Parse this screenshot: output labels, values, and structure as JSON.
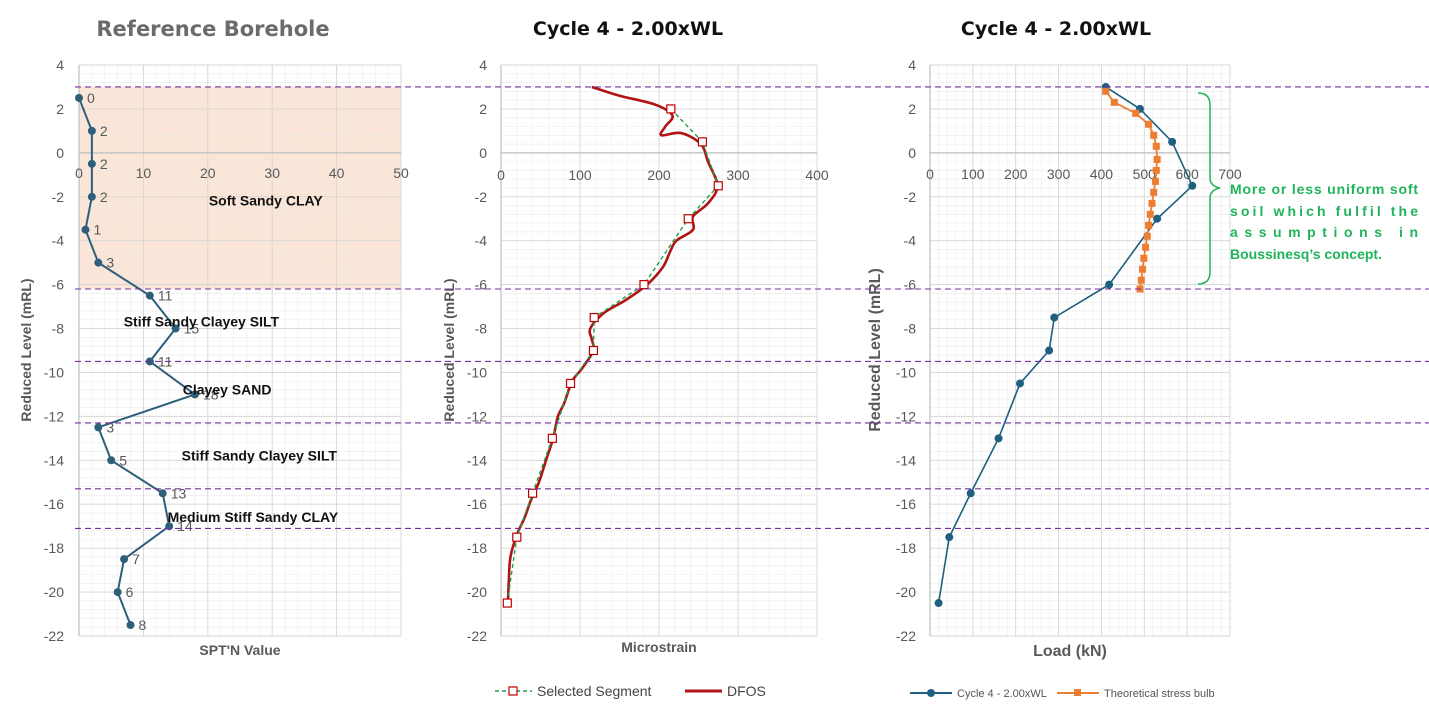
{
  "chart_data": [
    {
      "type": "line",
      "title": "Reference Borehole",
      "xlabel": "SPT'N Value",
      "ylabel": "Reduced Level (mRL)",
      "xlim": [
        0,
        50
      ],
      "ylim": [
        -22,
        4
      ],
      "xticks": [
        "0",
        "10",
        "20",
        "30",
        "40",
        "50"
      ],
      "yticks": [
        "4",
        "2",
        "0",
        "-2",
        "-4",
        "-6",
        "-8",
        "-10",
        "-12",
        "-14",
        "-16",
        "-18",
        "-20",
        "-22"
      ],
      "grid": true,
      "shaded_layer": {
        "top_mrl": 3.0,
        "bottom_mrl": -6.2,
        "color": "#fbe5d6"
      },
      "series": [
        {
          "color": "#2e5f7a",
          "points": [
            {
              "n": 0,
              "mrl": 2.5,
              "label": "0"
            },
            {
              "n": 2,
              "mrl": 1.0,
              "label": "2"
            },
            {
              "n": 2,
              "mrl": -0.5,
              "label": "2"
            },
            {
              "n": 2,
              "mrl": -2.0,
              "label": "2"
            },
            {
              "n": 1,
              "mrl": -3.5,
              "label": "1"
            },
            {
              "n": 3,
              "mrl": -5.0,
              "label": "3"
            },
            {
              "n": 11,
              "mrl": -6.5,
              "label": "11"
            },
            {
              "n": 15,
              "mrl": -8.0,
              "label": "15"
            },
            {
              "n": 11,
              "mrl": -9.5,
              "label": "11"
            },
            {
              "n": 18,
              "mrl": -11.0,
              "label": "18"
            },
            {
              "n": 3,
              "mrl": -12.5,
              "label": "3"
            },
            {
              "n": 5,
              "mrl": -14.0,
              "label": "5"
            },
            {
              "n": 13,
              "mrl": -15.5,
              "label": "13"
            },
            {
              "n": 14,
              "mrl": -17.0,
              "label": "14"
            },
            {
              "n": 7,
              "mrl": -18.5,
              "label": "7"
            },
            {
              "n": 6,
              "mrl": -20.0,
              "label": "6"
            },
            {
              "n": 8,
              "mrl": -21.5,
              "label": "8"
            }
          ]
        }
      ],
      "soil_layers": [
        {
          "label": "Soft Sandy CLAY",
          "n": 29,
          "mrl": -2.4
        },
        {
          "label": "Stiff Sandy Clayey SILT",
          "n": 19,
          "mrl": -7.9
        },
        {
          "label": "Clayey SAND",
          "n": 23,
          "mrl": -11.0
        },
        {
          "label": "Stiff Sandy Clayey SILT",
          "n": 28,
          "mrl": -14.0
        },
        {
          "label": "Medium Stiff Sandy CLAY",
          "n": 27,
          "mrl": -16.8
        }
      ]
    },
    {
      "type": "line",
      "title": "Cycle 4 - 2.00xWL",
      "xlabel": "Microstrain",
      "ylabel": "Reduced Level (mRL)",
      "xlim": [
        0,
        400
      ],
      "ylim": [
        -22,
        4
      ],
      "xticks": [
        "0",
        "100",
        "200",
        "300",
        "400"
      ],
      "yticks": [
        "4",
        "2",
        "0",
        "-2",
        "-4",
        "-6",
        "-8",
        "-10",
        "-12",
        "-14",
        "-16",
        "-18",
        "-20",
        "-22"
      ],
      "grid": true,
      "legend": "bottom",
      "series": [
        {
          "name": "Selected Segment",
          "color": "#1aa34a",
          "marker_color": "#c00000",
          "points": [
            [
              215,
              2.0
            ],
            [
              255,
              0.5
            ],
            [
              275,
              -1.5
            ],
            [
              237,
              -3.0
            ],
            [
              181,
              -6.0
            ],
            [
              118,
              -7.5
            ],
            [
              117,
              -9.0
            ],
            [
              88,
              -10.5
            ],
            [
              65,
              -13.0
            ],
            [
              40,
              -15.5
            ],
            [
              20,
              -17.5
            ],
            [
              8,
              -20.5
            ]
          ]
        },
        {
          "name": "DFOS",
          "color": "#b01414",
          "points": [
            [
              115,
              3.0
            ],
            [
              150,
              2.6
            ],
            [
              195,
              2.2
            ],
            [
              217,
              1.7
            ],
            [
              208,
              1.2
            ],
            [
              203,
              0.8
            ],
            [
              228,
              0.9
            ],
            [
              253,
              0.4
            ],
            [
              262,
              -0.4
            ],
            [
              274,
              -1.5
            ],
            [
              262,
              -2.3
            ],
            [
              243,
              -2.9
            ],
            [
              243,
              -3.5
            ],
            [
              222,
              -4.0
            ],
            [
              214,
              -4.5
            ],
            [
              205,
              -5.2
            ],
            [
              185,
              -6.0
            ],
            [
              158,
              -6.7
            ],
            [
              130,
              -7.3
            ],
            [
              113,
              -8.0
            ],
            [
              115,
              -8.5
            ],
            [
              117,
              -9.0
            ],
            [
              103,
              -9.8
            ],
            [
              90,
              -10.4
            ],
            [
              80,
              -11.4
            ],
            [
              72,
              -12.0
            ],
            [
              66,
              -13.0
            ],
            [
              57,
              -14.0
            ],
            [
              48,
              -15.0
            ],
            [
              38,
              -15.8
            ],
            [
              30,
              -16.6
            ],
            [
              20,
              -17.4
            ],
            [
              12,
              -18.4
            ],
            [
              10,
              -19.4
            ],
            [
              9,
              -20.3
            ]
          ]
        }
      ]
    },
    {
      "type": "line",
      "title": "Cycle 4 - 2.00xWL",
      "xlabel": "Load (kN)",
      "ylabel": "Reduced Level (mRL)",
      "xlim": [
        0,
        700
      ],
      "ylim": [
        -22,
        4
      ],
      "xticks": [
        "0",
        "100",
        "200",
        "300",
        "400",
        "500",
        "600",
        "700"
      ],
      "yticks": [
        "4",
        "2",
        "0",
        "-2",
        "-4",
        "-6",
        "-8",
        "-10",
        "-12",
        "-14",
        "-16",
        "-18",
        "-20",
        "-22"
      ],
      "grid": true,
      "legend": "bottom",
      "series": [
        {
          "name": "Cycle 4 - 2.00xWL",
          "color": "#1f5f7f",
          "points": [
            [
              410,
              3.0
            ],
            [
              490,
              2.0
            ],
            [
              565,
              0.5
            ],
            [
              612,
              -1.5
            ],
            [
              530,
              -3.0
            ],
            [
              418,
              -6.0
            ],
            [
              290,
              -7.5
            ],
            [
              278,
              -9.0
            ],
            [
              210,
              -10.5
            ],
            [
              160,
              -13.0
            ],
            [
              95,
              -15.5
            ],
            [
              45,
              -17.5
            ],
            [
              20,
              -20.5
            ]
          ]
        },
        {
          "name": "Theoretical stress bulb",
          "color": "#ed7d31",
          "points": [
            [
              410,
              2.8
            ],
            [
              430,
              2.3
            ],
            [
              480,
              1.8
            ],
            [
              510,
              1.3
            ],
            [
              522,
              0.8
            ],
            [
              528,
              0.3
            ],
            [
              530,
              -0.3
            ],
            [
              528,
              -0.8
            ],
            [
              526,
              -1.3
            ],
            [
              522,
              -1.8
            ],
            [
              518,
              -2.3
            ],
            [
              514,
              -2.8
            ],
            [
              510,
              -3.3
            ],
            [
              507,
              -3.8
            ],
            [
              503,
              -4.3
            ],
            [
              499,
              -4.8
            ],
            [
              496,
              -5.3
            ],
            [
              493,
              -5.8
            ],
            [
              490,
              -6.2
            ]
          ]
        }
      ],
      "annotation": {
        "lines": [
          "More or less uniform soft",
          "soil which fulfil the",
          "assumptions in",
          "Boussinesq’s concept."
        ]
      }
    }
  ],
  "layer_boundaries_mrl": [
    3.0,
    -6.2,
    -9.5,
    -12.3,
    -15.3,
    -17.1
  ]
}
